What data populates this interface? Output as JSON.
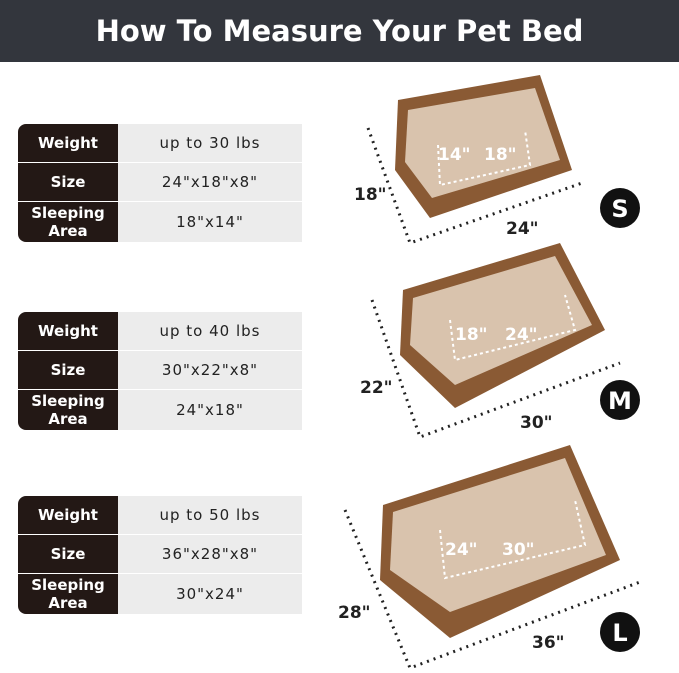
{
  "header": {
    "title": "How To Measure Your Pet Bed"
  },
  "sizes": [
    {
      "badge": "S",
      "weight_label": "Weight",
      "weight": "up to 30 lbs",
      "size_label": "Size",
      "size": "24\"x18\"x8\"",
      "area_label": "Sleeping Area",
      "area": "18\"x14\"",
      "length": "24\"",
      "width": "18\"",
      "inner_a": "14\"",
      "inner_b": "18\""
    },
    {
      "badge": "M",
      "weight_label": "Weight",
      "weight": "up to 40 lbs",
      "size_label": "Size",
      "size": "30\"x22\"x8\"",
      "area_label": "Sleeping Area",
      "area": "24\"x18\"",
      "length": "30\"",
      "width": "22\"",
      "inner_a": "18\"",
      "inner_b": "24\""
    },
    {
      "badge": "L",
      "weight_label": "Weight",
      "weight": "up to 50 lbs",
      "size_label": "Size",
      "size": "36\"x28\"x8\"",
      "area_label": "Sleeping Area",
      "area": "30\"x24\"",
      "length": "36\"",
      "width": "28\"",
      "inner_a": "24\"",
      "inner_b": "30\""
    }
  ],
  "colors": {
    "header_bg": "#33363d",
    "label_bg": "#231815",
    "value_bg": "#ececec",
    "bed_outer": "#8a5a34",
    "bed_inner": "#d9c3ad"
  }
}
